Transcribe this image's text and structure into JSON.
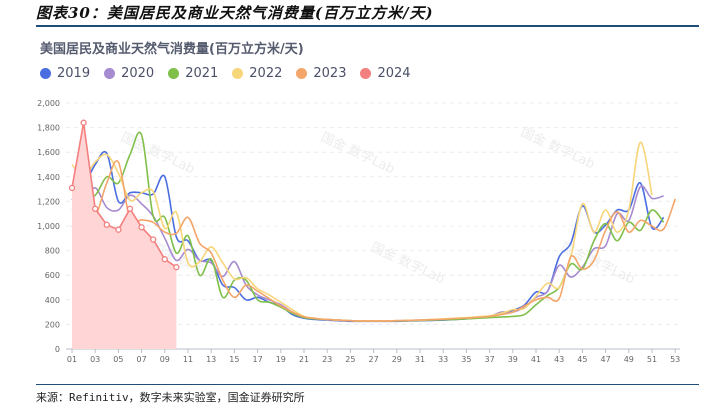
{
  "figure_title": "图表30：美国居民及商业天然气消费量(百万立方米/天)",
  "source": "来源：Refinitiv，数字未来实验室，国金证券研究所",
  "watermark": "国金 数字Lab",
  "chart_data": {
    "type": "line",
    "title": "美国居民及商业天然气消费量(百万立方米/天)",
    "xlabel": "",
    "ylabel": "",
    "ylim": [
      0,
      2000
    ],
    "yticks": [
      "0",
      "200",
      "400",
      "600",
      "800",
      "1,000",
      "1,200",
      "1,400",
      "1,600",
      "1,800",
      "2,000"
    ],
    "xticks": [
      "01",
      "03",
      "05",
      "07",
      "09",
      "11",
      "13",
      "15",
      "17",
      "19",
      "21",
      "23",
      "25",
      "27",
      "29",
      "31",
      "33",
      "35",
      "37",
      "39",
      "41",
      "43",
      "45",
      "47",
      "49",
      "51",
      "53"
    ],
    "grid": "horizontal-dashed",
    "legend": "top-left",
    "series": [
      {
        "name": "2019",
        "color": "#4a6ee0",
        "values": [
          1210,
          1320,
          1500,
          1590,
          1200,
          1270,
          1270,
          1260,
          1400,
          910,
          880,
          720,
          720,
          520,
          500,
          400,
          420,
          380,
          350,
          280,
          250,
          240,
          235,
          230,
          225,
          225,
          225,
          225,
          225,
          228,
          230,
          232,
          235,
          240,
          245,
          255,
          265,
          290,
          315,
          357,
          463,
          470,
          750,
          860,
          1163,
          950,
          1008,
          1130,
          1130,
          1350,
          985,
          1070
        ]
      },
      {
        "name": "2020",
        "color": "#a68bd0",
        "values": [
          1130,
          1200,
          1310,
          1150,
          1130,
          1250,
          1180,
          1080,
          900,
          720,
          810,
          720,
          700,
          590,
          710,
          520,
          440,
          400,
          360,
          300,
          260,
          245,
          240,
          235,
          230,
          228,
          228,
          228,
          230,
          232,
          235,
          238,
          240,
          245,
          250,
          258,
          265,
          300,
          300,
          340,
          420,
          470,
          680,
          585,
          665,
          815,
          840,
          1100,
          1045,
          1320,
          1225,
          1245
        ]
      },
      {
        "name": "2021",
        "color": "#7fbf4a",
        "values": [
          1260,
          1240,
          1250,
          1400,
          1350,
          1580,
          1740,
          1080,
          1070,
          780,
          920,
          600,
          730,
          420,
          560,
          560,
          400,
          380,
          340,
          290,
          255,
          245,
          240,
          235,
          230,
          228,
          228,
          228,
          228,
          230,
          232,
          235,
          238,
          240,
          245,
          250,
          255,
          260,
          265,
          280,
          360,
          435,
          500,
          690,
          650,
          880,
          1020,
          880,
          1030,
          965,
          1130,
          1030
        ]
      },
      {
        "name": "2022",
        "color": "#f7d57a",
        "values": [
          1500,
          1400,
          1520,
          1580,
          1430,
          1210,
          1270,
          1280,
          980,
          1110,
          700,
          710,
          830,
          700,
          570,
          580,
          490,
          440,
          380,
          320,
          265,
          250,
          240,
          235,
          230,
          228,
          228,
          228,
          230,
          232,
          235,
          240,
          245,
          250,
          255,
          262,
          270,
          290,
          320,
          330,
          430,
          535,
          500,
          750,
          1180,
          950,
          1130,
          950,
          1130,
          1680,
          1250
        ]
      },
      {
        "name": "2023",
        "color": "#f4a66a",
        "values": [
          990,
          1130,
          1080,
          1350,
          1520,
          1050,
          1050,
          1030,
          950,
          940,
          1070,
          860,
          780,
          560,
          420,
          520,
          470,
          410,
          350,
          300,
          262,
          248,
          240,
          235,
          230,
          228,
          228,
          228,
          230,
          232,
          235,
          238,
          242,
          248,
          252,
          258,
          265,
          280,
          300,
          350,
          400,
          420,
          410,
          750,
          650,
          720,
          965,
          1115,
          950,
          1045,
          1000,
          975,
          1220
        ]
      },
      {
        "name": "2024",
        "color": "#f47f7f",
        "fill": "#ffd5d5",
        "values": [
          1310,
          1840,
          1140,
          1010,
          970,
          1140,
          990,
          890,
          730,
          665
        ]
      }
    ]
  }
}
